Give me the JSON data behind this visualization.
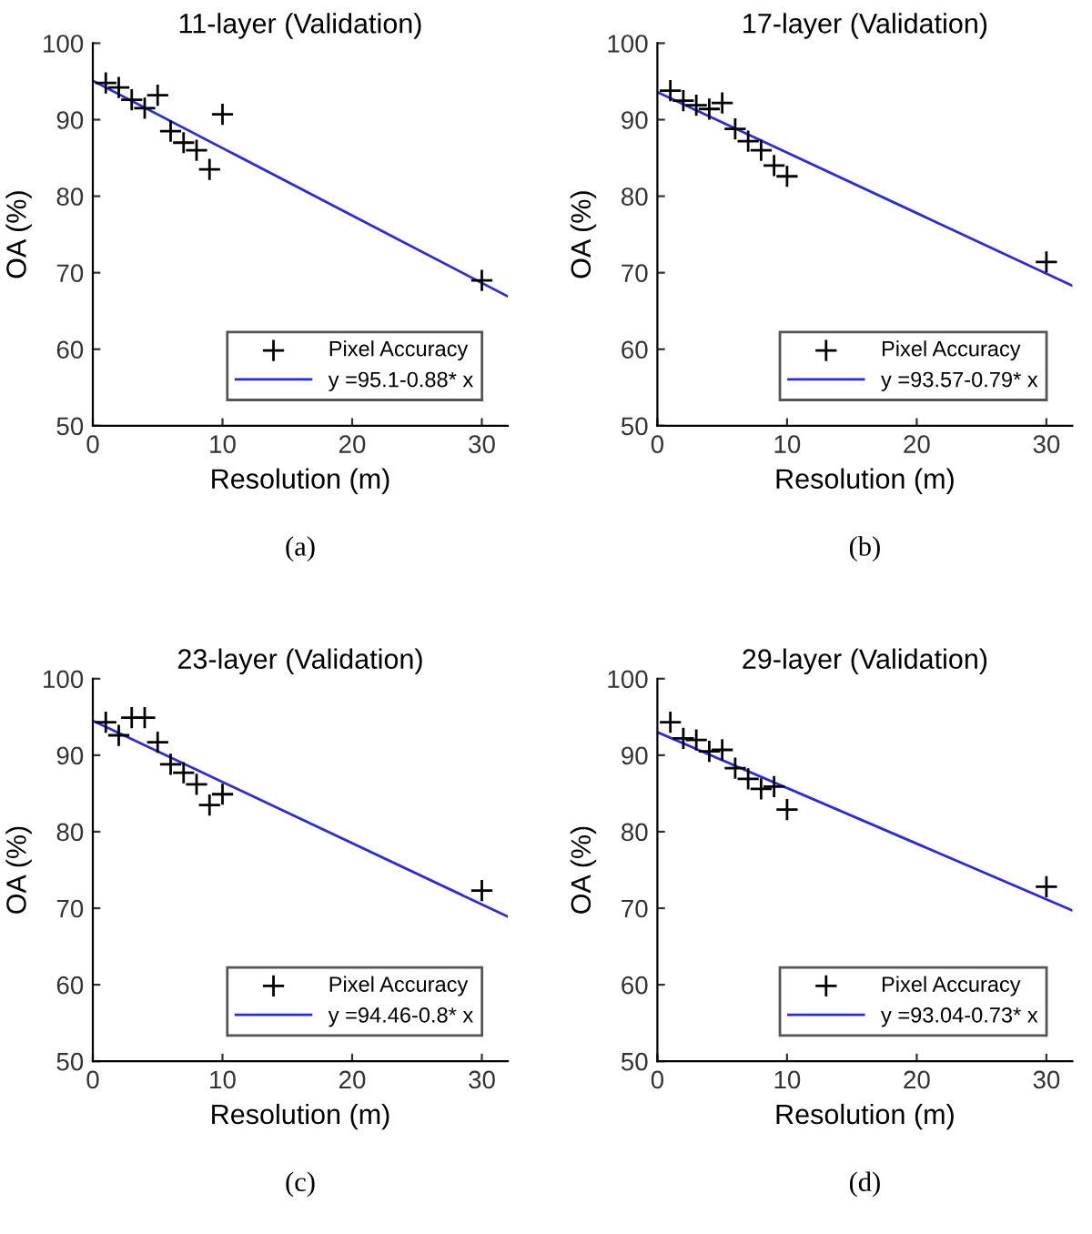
{
  "chart_data": [
    {
      "type": "scatter",
      "title": "11-layer (Validation)",
      "xlabel": "Resolution (m)",
      "ylabel": "OA (%)",
      "xlim": [
        0,
        32
      ],
      "xticks": [
        0,
        10,
        20,
        30
      ],
      "ylim": [
        50,
        100
      ],
      "yticks": [
        50,
        60,
        70,
        80,
        90,
        100
      ],
      "grid": false,
      "legend": "bottom right",
      "annotations": [
        "(a)"
      ],
      "series": [
        {
          "name": "Pixel Accuracy",
          "marker": "cross",
          "color": "#000000",
          "x": [
            1,
            2,
            3,
            4,
            5,
            6,
            7,
            8,
            9,
            10,
            30
          ],
          "values": [
            94.8,
            94.2,
            92.6,
            91.5,
            93.2,
            88.5,
            87.0,
            86.0,
            83.5,
            90.7,
            69.0
          ]
        },
        {
          "name": "y =95.1-0.88* x",
          "type": "line",
          "marker": "none",
          "color": "#2b2bd9",
          "x": [
            0,
            32
          ],
          "values": [
            95.1,
            66.9
          ]
        }
      ]
    },
    {
      "type": "scatter",
      "title": "17-layer (Validation)",
      "xlabel": "Resolution (m)",
      "ylabel": "OA (%)",
      "xlim": [
        0,
        32
      ],
      "xticks": [
        0,
        10,
        20,
        30
      ],
      "ylim": [
        50,
        100
      ],
      "yticks": [
        50,
        60,
        70,
        80,
        90,
        100
      ],
      "grid": false,
      "legend": "bottom right",
      "annotations": [
        "(b)"
      ],
      "series": [
        {
          "name": "Pixel Accuracy",
          "marker": "cross",
          "color": "#000000",
          "x": [
            1,
            2,
            3,
            4,
            5,
            6,
            7,
            8,
            9,
            10,
            30
          ],
          "values": [
            93.8,
            92.5,
            91.9,
            91.4,
            92.2,
            88.8,
            87.2,
            86.0,
            84.0,
            82.6,
            71.4
          ]
        },
        {
          "name": "y =93.57-0.79* x",
          "type": "line",
          "marker": "none",
          "color": "#2b2bd9",
          "x": [
            0,
            32
          ],
          "values": [
            93.6,
            68.3
          ]
        }
      ]
    },
    {
      "type": "scatter",
      "title": "23-layer (Validation)",
      "xlabel": "Resolution (m)",
      "ylabel": "OA (%)",
      "xlim": [
        0,
        32
      ],
      "xticks": [
        0,
        10,
        20,
        30
      ],
      "ylim": [
        50,
        100
      ],
      "yticks": [
        50,
        60,
        70,
        80,
        90,
        100
      ],
      "grid": false,
      "legend": "bottom right",
      "annotations": [
        "(c)"
      ],
      "series": [
        {
          "name": "Pixel Accuracy",
          "marker": "cross",
          "color": "#000000",
          "x": [
            1,
            2,
            3,
            4,
            5,
            6,
            7,
            8,
            9,
            10,
            30
          ],
          "values": [
            94.3,
            92.6,
            94.9,
            94.9,
            91.7,
            88.8,
            87.7,
            86.2,
            83.5,
            84.9,
            72.3
          ]
        },
        {
          "name": "y =94.46-0.8* x",
          "type": "line",
          "marker": "none",
          "color": "#2b2bd9",
          "x": [
            0,
            32
          ],
          "values": [
            94.5,
            68.9
          ]
        }
      ]
    },
    {
      "type": "scatter",
      "title": "29-layer (Validation)",
      "xlabel": "Resolution (m)",
      "ylabel": "OA (%)",
      "xlim": [
        0,
        32
      ],
      "xticks": [
        0,
        10,
        20,
        30
      ],
      "ylim": [
        50,
        100
      ],
      "yticks": [
        50,
        60,
        70,
        80,
        90,
        100
      ],
      "grid": false,
      "legend": "bottom right",
      "annotations": [
        "(d)"
      ],
      "series": [
        {
          "name": "Pixel Accuracy",
          "marker": "cross",
          "color": "#000000",
          "x": [
            1,
            2,
            3,
            4,
            5,
            6,
            7,
            8,
            9,
            10,
            30
          ],
          "values": [
            94.3,
            92.2,
            92.0,
            90.5,
            90.7,
            88.3,
            86.9,
            85.6,
            85.9,
            82.9,
            72.8
          ]
        },
        {
          "name": "y =93.04-0.73* x",
          "type": "line",
          "marker": "none",
          "color": "#2b2bd9",
          "x": [
            0,
            32
          ],
          "values": [
            93.0,
            69.7
          ]
        }
      ]
    }
  ]
}
